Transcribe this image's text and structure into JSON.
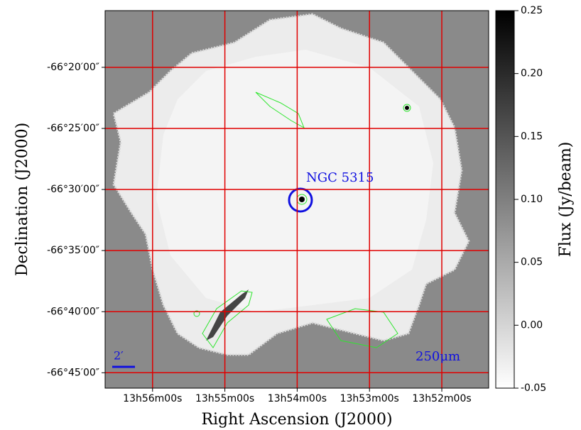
{
  "chart_data": {
    "type": "image",
    "x_label": "Right Ascension (J2000)",
    "y_label": "Declination (J2000)",
    "xlim": [
      209.164,
      207.838
    ],
    "ylim": [
      -66.771,
      -66.256
    ],
    "xticks": [
      {
        "value": 209.0,
        "label": "13h56m00s"
      },
      {
        "value": 208.75,
        "label": "13h55m00s"
      },
      {
        "value": 208.5,
        "label": "13h54m00s"
      },
      {
        "value": 208.25,
        "label": "13h53m00s"
      },
      {
        "value": 208.0,
        "label": "13h52m00s"
      }
    ],
    "yticks": [
      {
        "value": -66.3333,
        "label": "-66°20′00″"
      },
      {
        "value": -66.4167,
        "label": "-66°25′00″"
      },
      {
        "value": -66.5,
        "label": "-66°30′00″"
      },
      {
        "value": -66.5833,
        "label": "-66°35′00″"
      },
      {
        "value": -66.6667,
        "label": "-66°40′00″"
      },
      {
        "value": -66.75,
        "label": "-66°45′00″"
      }
    ],
    "grid": true,
    "grid_color": "#e00000",
    "colorbar": {
      "label": "Flux (Jy/beam)",
      "lim": [
        -0.05,
        0.25
      ],
      "colors": [
        "#ffffff",
        "#000000"
      ],
      "ticks": [
        0.25,
        {
          "value": 0.2,
          "label": "0.20"
        },
        0.15,
        {
          "value": 0.1,
          "label": "0.10"
        },
        0.05,
        {
          "value": 0,
          "label": "0.00"
        },
        -0.05
      ]
    },
    "annotations": {
      "target": "NGC 5315",
      "band": "250μm",
      "scale": "2′"
    }
  }
}
